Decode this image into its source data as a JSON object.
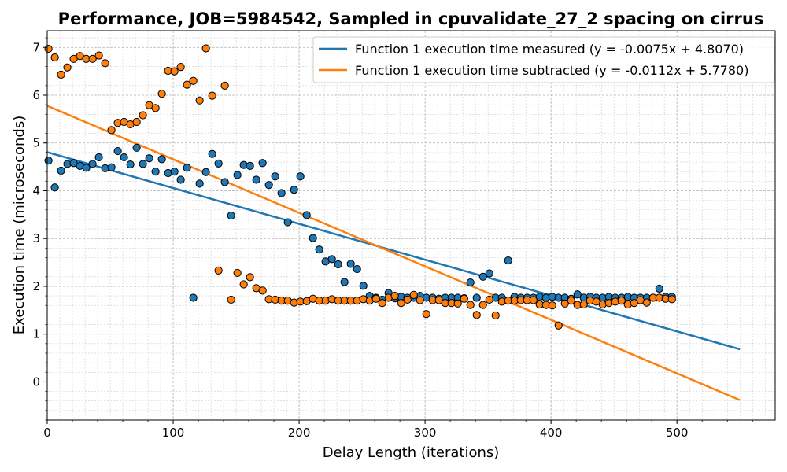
{
  "chart_data": {
    "type": "scatter",
    "title": "Performance, JOB=5984542, Sampled in cpuvalidate_27_2 spacing on cirrus",
    "xlabel": "Delay Length (iterations)",
    "ylabel": "Execution time (microseconds)",
    "xlim": [
      0,
      578
    ],
    "ylim": [
      -0.8,
      7.35
    ],
    "xticks": [
      0,
      100,
      200,
      300,
      400,
      500
    ],
    "yticks": [
      0,
      1,
      2,
      3,
      4,
      5,
      6,
      7
    ],
    "xtick_labels": [
      "0",
      "100",
      "200",
      "300",
      "400",
      "500"
    ],
    "ytick_labels": [
      "0",
      "1",
      "2",
      "3",
      "4",
      "5",
      "6",
      "7"
    ],
    "grid": true,
    "legend_position": "top-right",
    "series": [
      {
        "name": "Function 1 execution time measured (y = -0.0075x + 4.8070)",
        "color": "#1f77b4",
        "fit": {
          "slope": -0.0075,
          "intercept": 4.807,
          "x_range": [
            0,
            550
          ]
        },
        "points": [
          [
            1,
            4.63
          ],
          [
            6,
            4.07
          ],
          [
            11,
            4.42
          ],
          [
            16,
            4.56
          ],
          [
            21,
            4.58
          ],
          [
            26,
            4.52
          ],
          [
            31,
            4.48
          ],
          [
            36,
            4.56
          ],
          [
            41,
            4.7
          ],
          [
            46,
            4.47
          ],
          [
            51,
            4.49
          ],
          [
            56,
            4.83
          ],
          [
            61,
            4.7
          ],
          [
            66,
            4.55
          ],
          [
            71,
            4.9
          ],
          [
            76,
            4.56
          ],
          [
            81,
            4.68
          ],
          [
            86,
            4.4
          ],
          [
            91,
            4.66
          ],
          [
            96,
            4.37
          ],
          [
            101,
            4.4
          ],
          [
            106,
            4.23
          ],
          [
            111,
            4.48
          ],
          [
            116,
            1.76
          ],
          [
            121,
            4.15
          ],
          [
            126,
            4.39
          ],
          [
            131,
            4.77
          ],
          [
            136,
            4.57
          ],
          [
            141,
            4.18
          ],
          [
            146,
            3.48
          ],
          [
            151,
            4.33
          ],
          [
            156,
            4.54
          ],
          [
            161,
            4.52
          ],
          [
            166,
            4.23
          ],
          [
            171,
            4.58
          ],
          [
            176,
            4.12
          ],
          [
            181,
            4.3
          ],
          [
            186,
            3.95
          ],
          [
            191,
            3.34
          ],
          [
            196,
            4.02
          ],
          [
            201,
            4.3
          ],
          [
            206,
            3.49
          ],
          [
            211,
            3.01
          ],
          [
            216,
            2.77
          ],
          [
            221,
            2.52
          ],
          [
            226,
            2.57
          ],
          [
            231,
            2.46
          ],
          [
            236,
            2.09
          ],
          [
            241,
            2.47
          ],
          [
            246,
            2.36
          ],
          [
            251,
            2.01
          ],
          [
            256,
            1.8
          ],
          [
            261,
            1.76
          ],
          [
            266,
            1.72
          ],
          [
            271,
            1.86
          ],
          [
            276,
            1.75
          ],
          [
            281,
            1.78
          ],
          [
            286,
            1.76
          ],
          [
            291,
            1.76
          ],
          [
            296,
            1.8
          ],
          [
            301,
            1.76
          ],
          [
            306,
            1.76
          ],
          [
            311,
            1.74
          ],
          [
            316,
            1.76
          ],
          [
            321,
            1.76
          ],
          [
            326,
            1.76
          ],
          [
            331,
            1.75
          ],
          [
            336,
            2.08
          ],
          [
            341,
            1.76
          ],
          [
            346,
            2.2
          ],
          [
            351,
            2.27
          ],
          [
            356,
            1.76
          ],
          [
            361,
            1.76
          ],
          [
            366,
            2.54
          ],
          [
            371,
            1.78
          ],
          [
            376,
            1.76
          ],
          [
            381,
            1.76
          ],
          [
            386,
            1.76
          ],
          [
            391,
            1.78
          ],
          [
            396,
            1.76
          ],
          [
            401,
            1.78
          ],
          [
            406,
            1.76
          ],
          [
            411,
            1.76
          ],
          [
            416,
            1.74
          ],
          [
            421,
            1.83
          ],
          [
            426,
            1.76
          ],
          [
            431,
            1.78
          ],
          [
            436,
            1.76
          ],
          [
            441,
            1.76
          ],
          [
            446,
            1.78
          ],
          [
            451,
            1.76
          ],
          [
            456,
            1.76
          ],
          [
            461,
            1.78
          ],
          [
            466,
            1.76
          ],
          [
            471,
            1.76
          ],
          [
            476,
            1.76
          ],
          [
            481,
            1.76
          ],
          [
            486,
            1.95
          ],
          [
            491,
            1.78
          ],
          [
            496,
            1.78
          ]
        ]
      },
      {
        "name": "Function 1 execution time subtracted (y = -0.0112x + 5.7780)",
        "color": "#ff7f0e",
        "fit": {
          "slope": -0.0112,
          "intercept": 5.778,
          "x_range": [
            0,
            550
          ]
        },
        "points": [
          [
            1,
            6.97
          ],
          [
            6,
            6.79
          ],
          [
            11,
            6.43
          ],
          [
            16,
            6.58
          ],
          [
            21,
            6.76
          ],
          [
            26,
            6.82
          ],
          [
            31,
            6.76
          ],
          [
            36,
            6.76
          ],
          [
            41,
            6.83
          ],
          [
            46,
            6.67
          ],
          [
            51,
            5.27
          ],
          [
            56,
            5.42
          ],
          [
            61,
            5.44
          ],
          [
            66,
            5.39
          ],
          [
            71,
            5.44
          ],
          [
            76,
            5.58
          ],
          [
            81,
            5.79
          ],
          [
            86,
            5.73
          ],
          [
            91,
            6.03
          ],
          [
            96,
            6.51
          ],
          [
            101,
            6.5
          ],
          [
            106,
            6.59
          ],
          [
            111,
            6.22
          ],
          [
            116,
            6.3
          ],
          [
            121,
            5.89
          ],
          [
            126,
            6.98
          ],
          [
            131,
            5.99
          ],
          [
            136,
            2.33
          ],
          [
            141,
            6.2
          ],
          [
            146,
            1.72
          ],
          [
            151,
            2.28
          ],
          [
            156,
            2.04
          ],
          [
            161,
            2.19
          ],
          [
            166,
            1.96
          ],
          [
            171,
            1.91
          ],
          [
            176,
            1.73
          ],
          [
            181,
            1.72
          ],
          [
            186,
            1.7
          ],
          [
            191,
            1.7
          ],
          [
            196,
            1.66
          ],
          [
            201,
            1.68
          ],
          [
            206,
            1.69
          ],
          [
            211,
            1.74
          ],
          [
            216,
            1.7
          ],
          [
            221,
            1.7
          ],
          [
            226,
            1.73
          ],
          [
            231,
            1.7
          ],
          [
            236,
            1.7
          ],
          [
            241,
            1.7
          ],
          [
            246,
            1.7
          ],
          [
            251,
            1.73
          ],
          [
            256,
            1.7
          ],
          [
            261,
            1.74
          ],
          [
            266,
            1.65
          ],
          [
            271,
            1.76
          ],
          [
            276,
            1.8
          ],
          [
            281,
            1.65
          ],
          [
            286,
            1.72
          ],
          [
            291,
            1.82
          ],
          [
            296,
            1.71
          ],
          [
            301,
            1.42
          ],
          [
            306,
            1.71
          ],
          [
            311,
            1.71
          ],
          [
            316,
            1.65
          ],
          [
            321,
            1.65
          ],
          [
            326,
            1.64
          ],
          [
            331,
            1.74
          ],
          [
            336,
            1.61
          ],
          [
            341,
            1.4
          ],
          [
            346,
            1.61
          ],
          [
            351,
            1.72
          ],
          [
            356,
            1.39
          ],
          [
            361,
            1.68
          ],
          [
            366,
            1.7
          ],
          [
            371,
            1.7
          ],
          [
            376,
            1.71
          ],
          [
            381,
            1.71
          ],
          [
            386,
            1.71
          ],
          [
            391,
            1.62
          ],
          [
            396,
            1.61
          ],
          [
            401,
            1.6
          ],
          [
            406,
            1.18
          ],
          [
            411,
            1.64
          ],
          [
            416,
            1.7
          ],
          [
            421,
            1.61
          ],
          [
            426,
            1.62
          ],
          [
            431,
            1.7
          ],
          [
            436,
            1.68
          ],
          [
            441,
            1.62
          ],
          [
            446,
            1.65
          ],
          [
            451,
            1.68
          ],
          [
            456,
            1.7
          ],
          [
            461,
            1.62
          ],
          [
            466,
            1.65
          ],
          [
            471,
            1.71
          ],
          [
            476,
            1.66
          ],
          [
            481,
            1.76
          ],
          [
            486,
            1.76
          ],
          [
            491,
            1.74
          ],
          [
            496,
            1.73
          ]
        ]
      }
    ]
  }
}
